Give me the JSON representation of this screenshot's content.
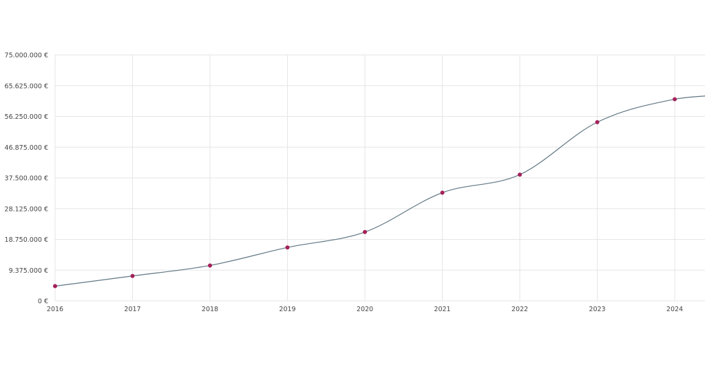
{
  "chart_data": {
    "type": "line",
    "title": "",
    "xlabel": "",
    "ylabel": "",
    "categories": [
      "2016",
      "2017",
      "2018",
      "2019",
      "2020",
      "2021",
      "2022",
      "2023",
      "2024"
    ],
    "series": [
      {
        "values": [
          4500000,
          7600000,
          10800000,
          16300000,
          21000000,
          33000000,
          38500000,
          54500000,
          61500000
        ]
      }
    ],
    "trailing_value_2024_5": 62700000,
    "ylim": [
      0,
      75000000
    ],
    "y_ticks": [
      0,
      9375000,
      18750000,
      28125000,
      37500000,
      46875000,
      56250000,
      65625000,
      75000000
    ],
    "y_tick_labels": [
      "0 €",
      "9.375.000 €",
      "18.750.000 €",
      "28.125.000 €",
      "37.500.000 €",
      "46.875.000 €",
      "56.250.000 €",
      "65.625.000 €",
      "75.000.000 €"
    ],
    "grid": true,
    "legend": "none",
    "colors": {
      "line": "#5f7683",
      "point": "#a4215a",
      "grid": "#e6e6e6",
      "text": "#444444"
    }
  }
}
